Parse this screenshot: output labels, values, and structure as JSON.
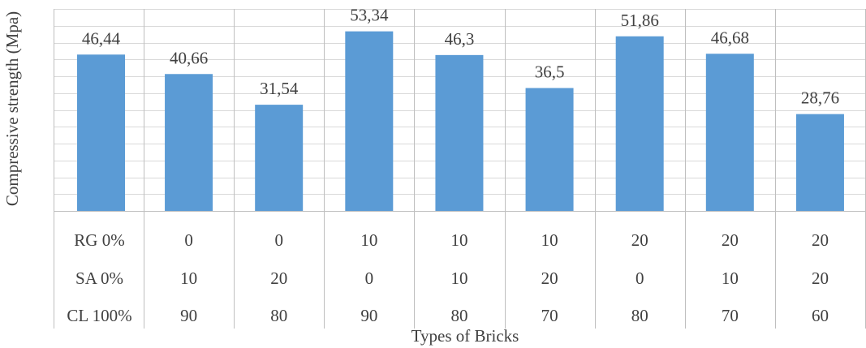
{
  "chart_data": {
    "type": "bar",
    "ylabel": "Compressive strength (Mpa)",
    "xlabel": "Types of Bricks",
    "ylim": [
      0,
      60
    ],
    "grid": true,
    "bar_color": "#5B9BD5",
    "values": [
      46.44,
      40.66,
      31.54,
      53.34,
      46.3,
      36.5,
      51.86,
      46.68,
      28.76
    ],
    "data_labels": [
      "46,44",
      "40,66",
      "31,54",
      "53,34",
      "46,3",
      "36,5",
      "51,86",
      "46,68",
      "28,76"
    ],
    "table": {
      "rows": [
        {
          "label": "RG 0%",
          "cells": [
            "0",
            "0",
            "10",
            "10",
            "10",
            "20",
            "20",
            "20"
          ]
        },
        {
          "label": "SA 0%",
          "cells": [
            "10",
            "20",
            "0",
            "10",
            "20",
            "0",
            "10",
            "20"
          ]
        },
        {
          "label": "CL 100%",
          "cells": [
            "90",
            "80",
            "90",
            "80",
            "70",
            "80",
            "70",
            "60"
          ]
        }
      ]
    }
  }
}
